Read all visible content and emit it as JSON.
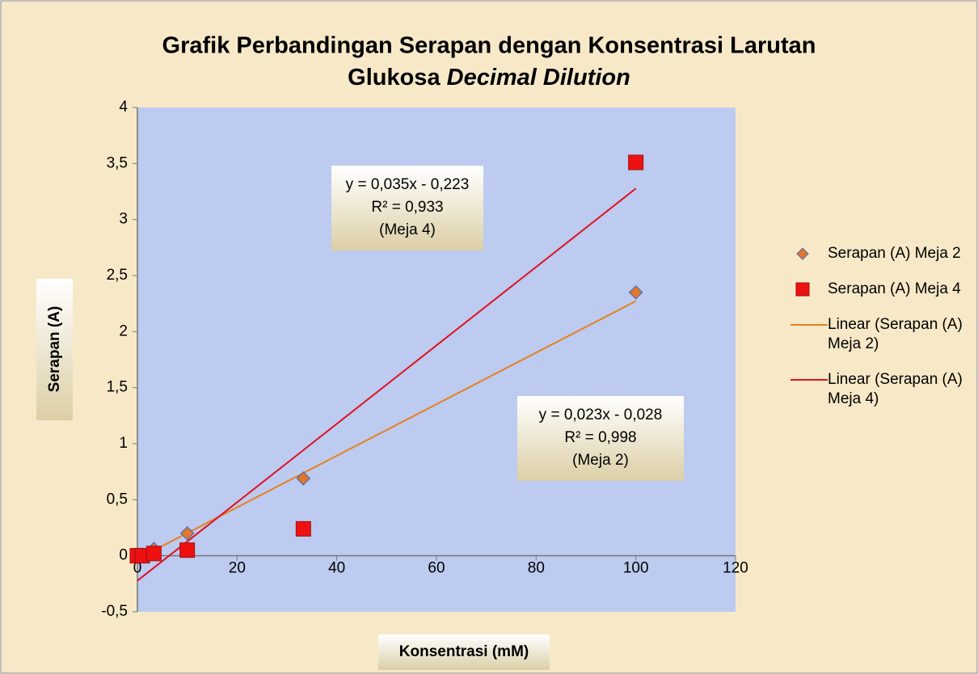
{
  "chart_data": {
    "type": "scatter",
    "title": [
      "Grafik Perbandingan Serapan dengan Konsentrasi Larutan",
      "Glukosa",
      "Decimal Dilution"
    ],
    "xlabel": "Konsentrasi (mM)",
    "ylabel": "Serapan (A)",
    "series": [
      {
        "name": "Serapan (A) Meja 2",
        "color": "#e2762a",
        "marker": "diamond",
        "x": [
          0,
          1,
          3.3,
          10,
          33.3,
          100
        ],
        "values": [
          0,
          0.01,
          0.06,
          0.2,
          0.69,
          2.35
        ]
      },
      {
        "name": "Serapan (A) Meja 4",
        "color": "#ee1111",
        "marker": "square",
        "x": [
          0,
          1,
          3.3,
          10,
          33.3,
          100
        ],
        "values": [
          0,
          0,
          0.02,
          0.05,
          0.24,
          3.51
        ]
      }
    ],
    "trendlines": [
      {
        "name": "Linear (Serapan (A) Meja 2)",
        "color": "#e8801e",
        "x": [
          0,
          100
        ],
        "values": [
          -0.028,
          2.272
        ]
      },
      {
        "name": "Linear (Serapan (A) Meja 4)",
        "color": "#e01020",
        "x": [
          0,
          100
        ],
        "values": [
          -0.223,
          3.277
        ]
      }
    ],
    "annotations": [
      [
        "y = 0,035x - 0,223",
        "R² = 0,933",
        "(Meja 4)"
      ],
      [
        "y = 0,023x - 0,028",
        "R² = 0,998",
        "(Meja 2)"
      ]
    ],
    "xlim": [
      0,
      120
    ],
    "xticks": [
      0,
      20,
      40,
      60,
      80,
      100,
      120
    ],
    "ylim": [
      -0.5,
      4
    ],
    "yticks": [
      {
        "value": -0.5,
        "label": "-0,5"
      },
      0,
      {
        "value": 0.5,
        "label": "0,5"
      },
      1,
      {
        "value": 1.5,
        "label": "1,5"
      },
      2,
      {
        "value": 2.5,
        "label": "2,5"
      },
      3,
      {
        "value": 3.5,
        "label": "3,5"
      },
      4
    ],
    "legend": "right"
  }
}
